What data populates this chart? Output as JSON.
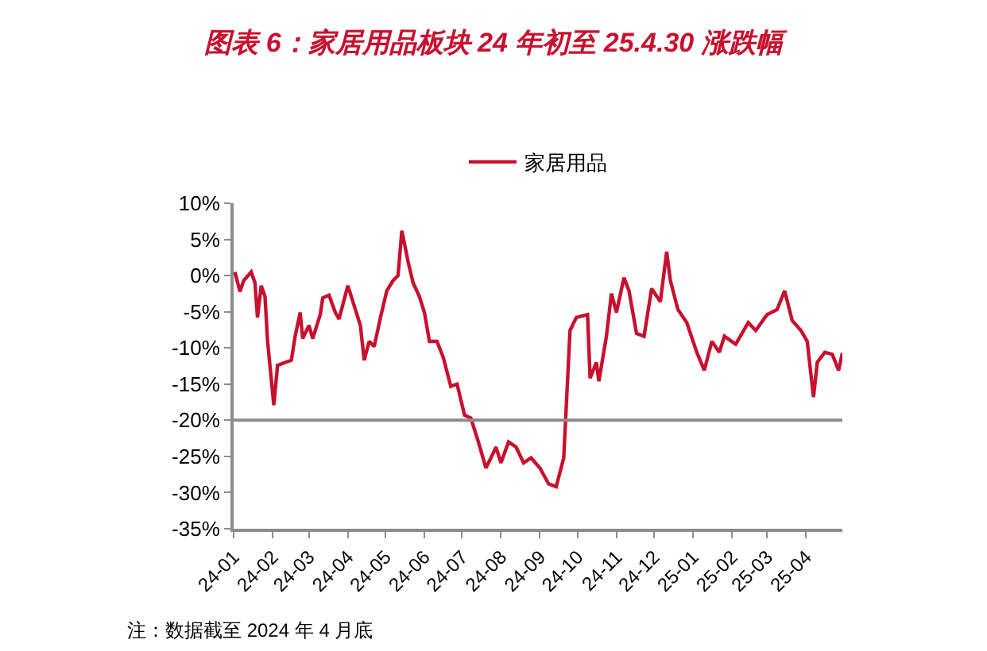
{
  "chart_data": {
    "type": "line",
    "title": "图表 6：家居用品板块 24 年初至 25.4.30 涨跌幅",
    "x": [
      "2024-01-02",
      "2024-01-06",
      "2024-01-09",
      "2024-01-15",
      "2024-01-18",
      "2024-01-20",
      "2024-01-23",
      "2024-01-26",
      "2024-01-28",
      "2024-02-02",
      "2024-02-05",
      "2024-02-16",
      "2024-02-19",
      "2024-02-23",
      "2024-02-25",
      "2024-03-01",
      "2024-03-04",
      "2024-03-10",
      "2024-03-12",
      "2024-03-17",
      "2024-03-22",
      "2024-03-25",
      "2024-04-01",
      "2024-04-07",
      "2024-04-11",
      "2024-04-14",
      "2024-04-18",
      "2024-04-22",
      "2024-04-27",
      "2024-05-02",
      "2024-05-07",
      "2024-05-11",
      "2024-05-14",
      "2024-05-19",
      "2024-05-23",
      "2024-05-28",
      "2024-06-01",
      "2024-06-05",
      "2024-06-11",
      "2024-06-16",
      "2024-06-22",
      "2024-06-27",
      "2024-07-03",
      "2024-07-08",
      "2024-07-14",
      "2024-07-20",
      "2024-07-26",
      "2024-07-28",
      "2024-08-01",
      "2024-08-07",
      "2024-08-13",
      "2024-08-19",
      "2024-08-25",
      "2024-09-01",
      "2024-09-08",
      "2024-09-14",
      "2024-09-20",
      "2024-09-25",
      "2024-09-30",
      "2024-10-09",
      "2024-10-11",
      "2024-10-16",
      "2024-10-18",
      "2024-10-24",
      "2024-10-28",
      "2024-11-01",
      "2024-11-07",
      "2024-11-11",
      "2024-11-17",
      "2024-11-23",
      "2024-11-29",
      "2024-12-06",
      "2024-12-11",
      "2024-12-14",
      "2024-12-20",
      "2024-12-27",
      "2025-01-04",
      "2025-01-10",
      "2025-01-16",
      "2025-01-22",
      "2025-01-26",
      "2025-02-04",
      "2025-02-14",
      "2025-02-20",
      "2025-03-01",
      "2025-03-09",
      "2025-03-15",
      "2025-03-21",
      "2025-03-28",
      "2025-04-02",
      "2025-04-07",
      "2025-04-10",
      "2025-04-16",
      "2025-04-22",
      "2025-04-27",
      "2025-04-30"
    ],
    "series": [
      {
        "name": "家居用品",
        "color": "#c8102e",
        "values": [
          0.5,
          -2.2,
          -0.7,
          0.5,
          -1,
          -5.8,
          -1.4,
          -2.9,
          -9,
          -17.9,
          -12.4,
          -11.7,
          -8.4,
          -5.1,
          -8.7,
          -6.9,
          -8.7,
          -5.4,
          -3.1,
          -2.7,
          -5.1,
          -6,
          -1.4,
          -4.7,
          -6.9,
          -11.7,
          -9.1,
          -9.8,
          -5.8,
          -2.1,
          -0.7,
          0,
          6.2,
          1.9,
          -1,
          -2.9,
          -5.1,
          -9.1,
          -9.1,
          -11.3,
          -15.3,
          -15,
          -19.3,
          -19.7,
          -23,
          -26.6,
          -24.5,
          -23.7,
          -25.9,
          -23,
          -23.7,
          -25.9,
          -25.2,
          -26.6,
          -28.8,
          -29.2,
          -25.2,
          -7.6,
          -5.8,
          -5.4,
          -14.2,
          -12,
          -14.6,
          -8.4,
          -2.5,
          -5.1,
          -0.3,
          -2.1,
          -8,
          -8.4,
          -1.8,
          -3.6,
          3.3,
          -0.7,
          -4.7,
          -6.5,
          -10.6,
          -13.1,
          -9.1,
          -10.6,
          -8.4,
          -9.5,
          -6.5,
          -7.6,
          -5.4,
          -4.7,
          -2.1,
          -6.2,
          -7.6,
          -9.1,
          -16.8,
          -12,
          -10.6,
          -10.9,
          -13.1,
          -10.7
        ]
      }
    ],
    "xlim": [
      "2024-01-01",
      "2025-04-30"
    ],
    "xticks": [
      {
        "value": "2024-01-01",
        "label": "24-01"
      },
      {
        "value": "2024-02-01",
        "label": "24-02"
      },
      {
        "value": "2024-03-01",
        "label": "24-03"
      },
      {
        "value": "2024-04-01",
        "label": "24-04"
      },
      {
        "value": "2024-05-01",
        "label": "24-05"
      },
      {
        "value": "2024-06-01",
        "label": "24-06"
      },
      {
        "value": "2024-07-01",
        "label": "24-07"
      },
      {
        "value": "2024-08-01",
        "label": "24-08"
      },
      {
        "value": "2024-09-01",
        "label": "24-09"
      },
      {
        "value": "2024-10-01",
        "label": "24-10"
      },
      {
        "value": "2024-11-01",
        "label": "24-11"
      },
      {
        "value": "2024-12-01",
        "label": "24-12"
      },
      {
        "value": "2025-01-01",
        "label": "25-01"
      },
      {
        "value": "2025-02-01",
        "label": "25-02"
      },
      {
        "value": "2025-03-01",
        "label": "25-03"
      },
      {
        "value": "2025-04-01",
        "label": "25-04"
      }
    ],
    "ylim": [
      -35,
      10
    ],
    "yticks": [
      {
        "value": 10,
        "label": "10%"
      },
      {
        "value": 5,
        "label": "5%"
      },
      {
        "value": 0,
        "label": "0%"
      },
      {
        "value": -5,
        "label": "-5%"
      },
      {
        "value": -10,
        "label": "-10%"
      },
      {
        "value": -15,
        "label": "-15%"
      },
      {
        "value": -20,
        "label": "-20%"
      },
      {
        "value": -25,
        "label": "-25%"
      },
      {
        "value": -30,
        "label": "-30%"
      },
      {
        "value": -35,
        "label": "-35%"
      }
    ],
    "ref_lines": [
      {
        "axis": "y",
        "value": -20,
        "color": "#8c8c8c"
      }
    ],
    "legend": "top",
    "marker": "none",
    "line_style": "solid",
    "annotations": [
      "注：数据截至 2024 年 4 月底"
    ]
  }
}
